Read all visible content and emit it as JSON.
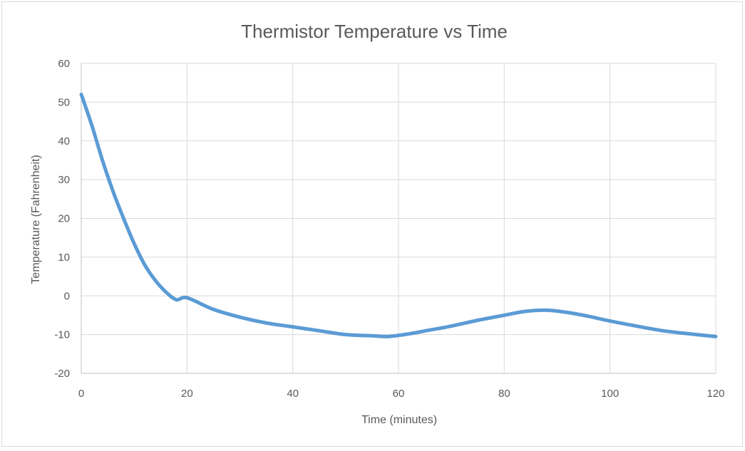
{
  "chart_data": {
    "type": "line",
    "title": "Thermistor Temperature vs Time",
    "xlabel": "Time (minutes)",
    "ylabel": "Temperature (Fahrenheit)",
    "xlim": [
      0,
      120
    ],
    "ylim": [
      -20,
      60
    ],
    "x_ticks": [
      0,
      20,
      40,
      60,
      80,
      100,
      120
    ],
    "y_ticks": [
      60,
      50,
      40,
      30,
      20,
      10,
      0,
      -10,
      -20
    ],
    "grid": true,
    "legend": "none",
    "series_color": "#5B9BD5",
    "series": [
      {
        "x": [
          0,
          2,
          4,
          6,
          8,
          10,
          12,
          14,
          16,
          18,
          20,
          25,
          30,
          35,
          40,
          45,
          50,
          55,
          58,
          62,
          66,
          70,
          75,
          80,
          84,
          88,
          92,
          96,
          100,
          105,
          110,
          115,
          120
        ],
        "values": [
          52,
          44,
          35,
          27,
          20,
          13.5,
          8,
          4,
          1,
          -1,
          -0.5,
          -3.5,
          -5.5,
          -7,
          -8,
          -9,
          -10,
          -10.3,
          -10.5,
          -9.8,
          -8.8,
          -7.8,
          -6.3,
          -5,
          -4,
          -3.7,
          -4.3,
          -5.3,
          -6.5,
          -7.8,
          -9,
          -9.8,
          -10.5
        ]
      }
    ]
  }
}
